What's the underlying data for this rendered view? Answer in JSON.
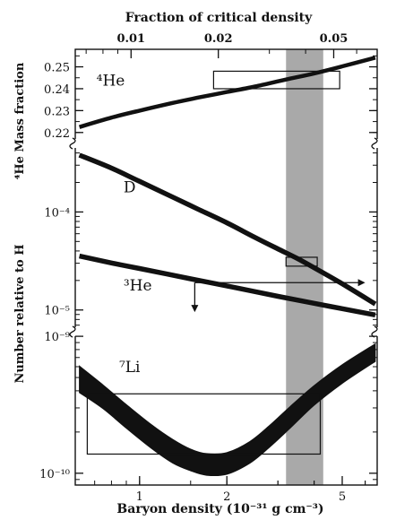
{
  "chart_data": {
    "type": "line",
    "title": "Fraction of critical density",
    "xlabel": "Baryon density (10⁻³¹ g cm⁻³)",
    "xscale": "log",
    "xlim": [
      0.6,
      6.6
    ],
    "x_ticks": [
      {
        "value": 1,
        "label": "1"
      },
      {
        "value": 2,
        "label": "2"
      },
      {
        "value": 5,
        "label": "5"
      }
    ],
    "top_ticks": [
      {
        "value": 0.01,
        "label": "0.01"
      },
      {
        "value": 0.02,
        "label": "0.02"
      },
      {
        "value": 0.05,
        "label": "0.05"
      }
    ],
    "top_axis_conversion": 0.0107,
    "band": {
      "x": [
        3.2,
        4.3
      ]
    },
    "panels": [
      {
        "id": "he4",
        "ylabel": "⁴He Mass fraction",
        "ylim": [
          0.215,
          0.258
        ],
        "yscale": "linear",
        "y_ticks": [
          {
            "value": 0.22,
            "label": "0.22"
          },
          {
            "value": 0.23,
            "label": "0.23"
          },
          {
            "value": 0.24,
            "label": "0.24"
          },
          {
            "value": 0.25,
            "label": "0.25"
          }
        ],
        "boxes": [
          {
            "x": [
              1.8,
              4.9
            ],
            "y": [
              0.24,
              0.248
            ]
          }
        ]
      },
      {
        "id": "dhe3",
        "ylabel": "Number relative to H",
        "ylim": [
          6e-06,
          0.0005
        ],
        "yscale": "log",
        "y_ticks": [
          {
            "value": 0.0001,
            "label": "10⁻⁴"
          },
          {
            "value": 1e-05,
            "label": "10⁻⁵"
          }
        ],
        "boxes": [
          {
            "x": [
              3.2,
              4.1
            ],
            "y": [
              2.8e-05,
              3.45e-05
            ]
          }
        ],
        "limits": [
          {
            "x": [
              1.55,
              6.0
            ],
            "y": 1.9e-05,
            "direction": "right"
          },
          {
            "x": 1.55,
            "y": [
              1.9e-05,
              9.5e-06
            ],
            "direction": "down"
          }
        ]
      },
      {
        "id": "li7",
        "ylabel": "",
        "ylim": [
          8.2e-11,
          1.08e-09
        ],
        "yscale": "log",
        "y_ticks": [
          {
            "value": 1e-09,
            "label": "10⁻⁹"
          },
          {
            "value": 1e-10,
            "label": "10⁻¹⁰"
          }
        ],
        "boxes": [
          {
            "x": [
              0.66,
              4.2
            ],
            "y": [
              1.38e-10,
              3.8e-10
            ]
          }
        ]
      }
    ],
    "series": [
      {
        "name": "⁴He",
        "panel": "he4",
        "label_x": 0.71,
        "label_y": 0.2415,
        "x": [
          0.62,
          0.8,
          1.0,
          1.3,
          1.6,
          2.0,
          2.5,
          3.2,
          4.0,
          5.0,
          6.5
        ],
        "y": [
          0.2225,
          0.2268,
          0.23,
          0.2335,
          0.236,
          0.2385,
          0.241,
          0.2442,
          0.247,
          0.2502,
          0.2542
        ]
      },
      {
        "name": "D",
        "panel": "dhe3",
        "label_x": 0.88,
        "label_y": 0.000158,
        "x": [
          0.62,
          0.8,
          1.0,
          1.3,
          1.6,
          2.0,
          2.5,
          3.0,
          3.5,
          4.0,
          5.0,
          6.5
        ],
        "y": [
          0.00038,
          0.00028,
          0.000205,
          0.000142,
          0.000106,
          7.75e-05,
          5.5e-05,
          4.2e-05,
          3.35e-05,
          2.7e-05,
          1.85e-05,
          1.15e-05
        ]
      },
      {
        "name": "³He",
        "panel": "dhe3",
        "label_x": 0.88,
        "label_y": 1.58e-05,
        "x": [
          0.62,
          0.8,
          1.0,
          1.5,
          2.0,
          3.0,
          4.0,
          5.0,
          6.5
        ],
        "y": [
          3.55e-05,
          3.02e-05,
          2.65e-05,
          2.08e-05,
          1.76e-05,
          1.38e-05,
          1.17e-05,
          1.03e-05,
          8.9e-06
        ]
      },
      {
        "name": "⁷Li",
        "panel": "li7",
        "label_x": 0.85,
        "label_y": 5.5e-10,
        "x": [
          0.62,
          0.75,
          0.9,
          1.1,
          1.3,
          1.5,
          1.7,
          2.0,
          2.4,
          2.8,
          3.3,
          4.0,
          5.0,
          6.5
        ],
        "y": [
          4.85e-10,
          3.6e-10,
          2.6e-10,
          1.85e-10,
          1.45e-10,
          1.25e-10,
          1.16e-10,
          1.18e-10,
          1.42e-10,
          1.85e-10,
          2.55e-10,
          3.7e-10,
          5.3e-10,
          7.6e-10
        ],
        "width_factor": [
          1.25,
          1.22,
          1.22,
          1.22,
          1.22,
          1.2,
          1.2,
          1.2,
          1.2,
          1.2,
          1.2,
          1.18,
          1.17,
          1.16
        ]
      }
    ]
  }
}
